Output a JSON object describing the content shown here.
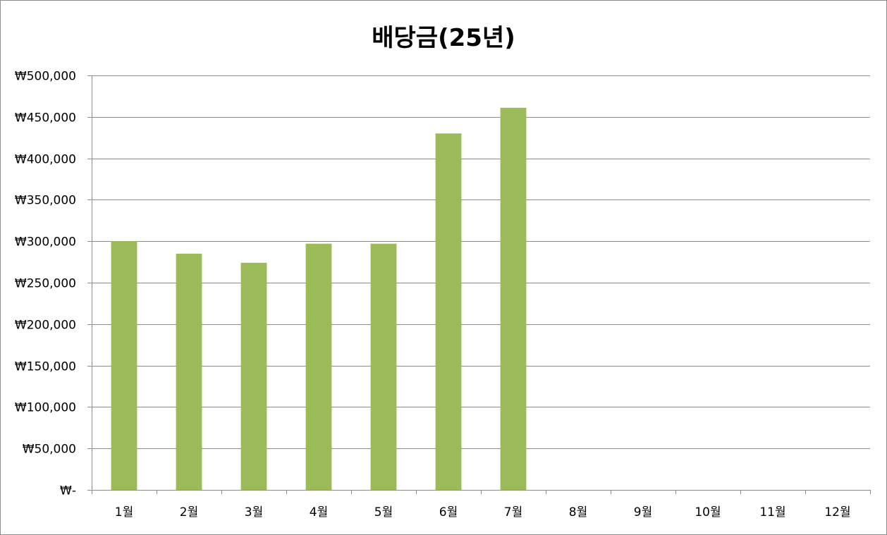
{
  "chart_data": {
    "type": "bar",
    "title": "배당금(25년)",
    "xlabel": "",
    "ylabel": "",
    "categories": [
      "1월",
      "2월",
      "3월",
      "4월",
      "5월",
      "6월",
      "7월",
      "8월",
      "9월",
      "10월",
      "11월",
      "12월"
    ],
    "values": [
      300000,
      285000,
      274000,
      297000,
      297000,
      430000,
      461000,
      null,
      null,
      null,
      null,
      null
    ],
    "ylim": [
      0,
      500000
    ],
    "yticks": [
      0,
      50000,
      100000,
      150000,
      200000,
      250000,
      300000,
      350000,
      400000,
      450000,
      500000
    ],
    "ytick_labels": [
      "₩-",
      "₩50,000",
      "₩100,000",
      "₩150,000",
      "₩200,000",
      "₩250,000",
      "₩300,000",
      "₩350,000",
      "₩400,000",
      "₩450,000",
      "₩500,000"
    ],
    "grid": true,
    "legend": "none",
    "bar_color": "#9bbb59",
    "grid_color": "#8c8c8c"
  }
}
